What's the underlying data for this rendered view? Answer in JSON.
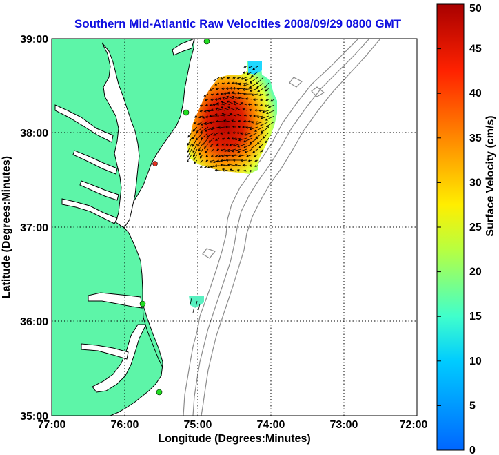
{
  "chart_data": {
    "type": "map",
    "title": "Southern Mid-Atlantic Raw Velocities 2008/09/29 0800 GMT",
    "xlabel": "Longitude (Degrees:Minutes)",
    "ylabel": "Latitude (Degrees:Minutes)",
    "x_ticks": [
      "77:00",
      "76:00",
      "75:00",
      "74:00",
      "73:00",
      "72:00"
    ],
    "y_ticks": [
      "39:00",
      "38:00",
      "37:00",
      "36:00",
      "35:00"
    ],
    "xlim": [
      -77,
      -72
    ],
    "ylim": [
      35,
      39
    ],
    "grid": true,
    "colorbar": {
      "label": "Surface Velocity (cm/s)",
      "range": [
        0,
        50
      ],
      "ticks": [
        "0",
        "5",
        "10",
        "15",
        "20",
        "25",
        "30",
        "35",
        "40",
        "45",
        "50"
      ]
    },
    "colors": {
      "land": "#5df5a8",
      "water": "#ffffff",
      "coastline": "#000000",
      "bathymetry": "#8c8c8c",
      "station": "#22dd22",
      "station_inactive": "#e03020"
    },
    "velocity_field": {
      "region": {
        "lon": [
          -75.1,
          -74.1
        ],
        "lat": [
          37.6,
          38.75
        ]
      },
      "max_speed_location": {
        "lon": -74.25,
        "lat": 37.72,
        "speed": 48
      }
    }
  }
}
